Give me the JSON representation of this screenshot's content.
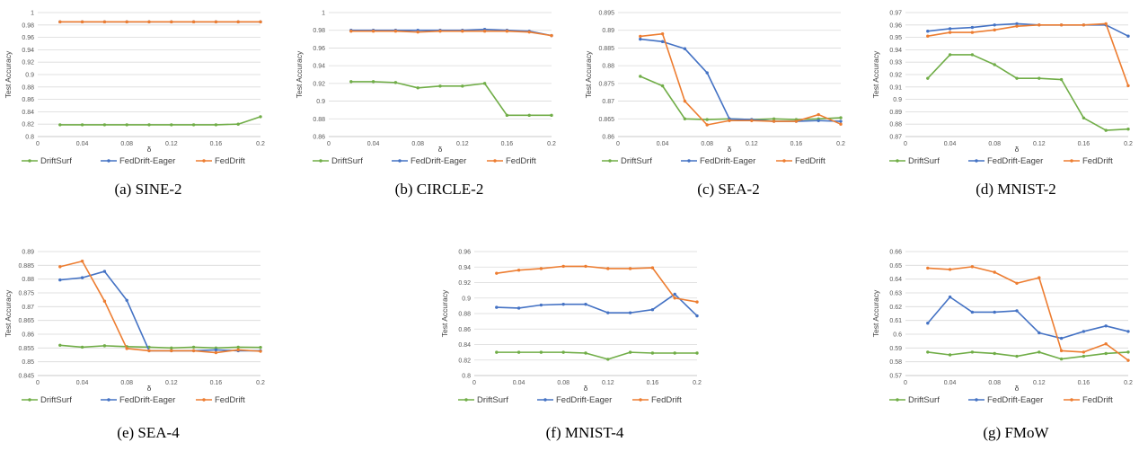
{
  "series_colors": {
    "DriftSurf": "#70AD47",
    "FedDrift-Eager": "#4472C4",
    "FedDrift": "#ED7D31"
  },
  "chart_data": [
    {
      "type": "line",
      "caption": "(a) SINE-2",
      "xlabel": "δ",
      "ylabel": "Test Accuracy",
      "x": [
        0.02,
        0.04,
        0.06,
        0.08,
        0.1,
        0.12,
        0.14,
        0.16,
        0.18,
        0.2
      ],
      "xticks": [
        "0",
        "0.04",
        "0.08",
        "0.12",
        "0.16",
        "0.2"
      ],
      "xtick_values": [
        0,
        0.04,
        0.08,
        0.12,
        0.16,
        0.2
      ],
      "xlim": [
        0,
        0.2
      ],
      "ylim": [
        0.8,
        1.0
      ],
      "yticks": [
        "0.8",
        "0.82",
        "0.84",
        "0.86",
        "0.88",
        "0.9",
        "0.92",
        "0.94",
        "0.96",
        "0.98",
        "1"
      ],
      "series": [
        {
          "name": "DriftSurf",
          "values": [
            0.819,
            0.819,
            0.819,
            0.819,
            0.819,
            0.819,
            0.819,
            0.819,
            0.82,
            0.832
          ]
        },
        {
          "name": "FedDrift-Eager",
          "values": [
            0.985,
            0.985,
            0.985,
            0.985,
            0.985,
            0.985,
            0.985,
            0.985,
            0.985,
            0.985
          ]
        },
        {
          "name": "FedDrift",
          "values": [
            0.985,
            0.985,
            0.985,
            0.985,
            0.985,
            0.985,
            0.985,
            0.985,
            0.985,
            0.985
          ]
        }
      ]
    },
    {
      "type": "line",
      "caption": "(b) CIRCLE-2",
      "xlabel": "δ",
      "ylabel": "Test Accuracy",
      "x": [
        0.02,
        0.04,
        0.06,
        0.08,
        0.1,
        0.12,
        0.14,
        0.16,
        0.18,
        0.2
      ],
      "xticks": [
        "0",
        "0.04",
        "0.08",
        "0.12",
        "0.16",
        "0.2"
      ],
      "xtick_values": [
        0,
        0.04,
        0.08,
        0.12,
        0.16,
        0.2
      ],
      "xlim": [
        0,
        0.2
      ],
      "ylim": [
        0.86,
        1.0
      ],
      "yticks": [
        "0.86",
        "0.88",
        "0.9",
        "0.92",
        "0.94",
        "0.96",
        "0.98",
        "1"
      ],
      "series": [
        {
          "name": "DriftSurf",
          "values": [
            0.922,
            0.922,
            0.921,
            0.915,
            0.917,
            0.917,
            0.92,
            0.884,
            0.884,
            0.884
          ]
        },
        {
          "name": "FedDrift-Eager",
          "values": [
            0.98,
            0.98,
            0.98,
            0.98,
            0.98,
            0.98,
            0.981,
            0.98,
            0.979,
            0.974
          ]
        },
        {
          "name": "FedDrift",
          "values": [
            0.979,
            0.979,
            0.979,
            0.978,
            0.979,
            0.979,
            0.979,
            0.979,
            0.978,
            0.974
          ]
        }
      ]
    },
    {
      "type": "line",
      "caption": "(c) SEA-2",
      "xlabel": "δ",
      "ylabel": "Test Accuracy",
      "x": [
        0.02,
        0.04,
        0.06,
        0.08,
        0.1,
        0.12,
        0.14,
        0.16,
        0.18,
        0.2
      ],
      "xticks": [
        "0",
        "0.04",
        "0.08",
        "0.12",
        "0.16",
        "0.2"
      ],
      "xtick_values": [
        0,
        0.04,
        0.08,
        0.12,
        0.16,
        0.2
      ],
      "xlim": [
        0,
        0.2
      ],
      "ylim": [
        0.86,
        0.895
      ],
      "yticks": [
        "0.86",
        "0.865",
        "0.87",
        "0.875",
        "0.88",
        "0.885",
        "0.89",
        "0.895"
      ],
      "series": [
        {
          "name": "DriftSurf",
          "values": [
            0.877,
            0.8743,
            0.865,
            0.8648,
            0.865,
            0.8648,
            0.865,
            0.8648,
            0.865,
            0.8653
          ]
        },
        {
          "name": "FedDrift-Eager",
          "values": [
            0.8875,
            0.8868,
            0.8848,
            0.878,
            0.865,
            0.8648,
            0.8643,
            0.8643,
            0.8645,
            0.8643
          ]
        },
        {
          "name": "FedDrift",
          "values": [
            0.8883,
            0.889,
            0.87,
            0.8633,
            0.8645,
            0.8645,
            0.8643,
            0.8643,
            0.8662,
            0.8635
          ]
        }
      ]
    },
    {
      "type": "line",
      "caption": "(d) MNIST-2",
      "xlabel": "δ",
      "ylabel": "Test Accuracy",
      "x": [
        0.02,
        0.04,
        0.06,
        0.08,
        0.1,
        0.12,
        0.14,
        0.16,
        0.18,
        0.2
      ],
      "xticks": [
        "0",
        "0.04",
        "0.08",
        "0.12",
        "0.16",
        "0.2"
      ],
      "xtick_values": [
        0,
        0.04,
        0.08,
        0.12,
        0.16,
        0.2
      ],
      "xlim": [
        0,
        0.2
      ],
      "ylim": [
        0.87,
        0.97
      ],
      "yticks": [
        "0.87",
        "0.88",
        "0.89",
        "0.9",
        "0.91",
        "0.92",
        "0.93",
        "0.94",
        "0.95",
        "0.96",
        "0.97"
      ],
      "series": [
        {
          "name": "DriftSurf",
          "values": [
            0.917,
            0.936,
            0.936,
            0.928,
            0.917,
            0.917,
            0.916,
            0.885,
            0.875,
            0.876
          ]
        },
        {
          "name": "FedDrift-Eager",
          "values": [
            0.955,
            0.957,
            0.958,
            0.96,
            0.961,
            0.96,
            0.96,
            0.96,
            0.96,
            0.951
          ]
        },
        {
          "name": "FedDrift",
          "values": [
            0.951,
            0.954,
            0.954,
            0.956,
            0.959,
            0.96,
            0.96,
            0.96,
            0.961,
            0.911
          ]
        }
      ]
    },
    {
      "type": "line",
      "caption": "(e) SEA-4",
      "xlabel": "δ",
      "ylabel": "Test Accuracy",
      "x": [
        0.02,
        0.04,
        0.06,
        0.08,
        0.1,
        0.12,
        0.14,
        0.16,
        0.18,
        0.2
      ],
      "xticks": [
        "0",
        "0.04",
        "0.08",
        "0.12",
        "0.16",
        "0.2"
      ],
      "xtick_values": [
        0,
        0.04,
        0.08,
        0.12,
        0.16,
        0.2
      ],
      "xlim": [
        0,
        0.2
      ],
      "ylim": [
        0.845,
        0.89
      ],
      "yticks": [
        "0.845",
        "0.85",
        "0.855",
        "0.86",
        "0.865",
        "0.87",
        "0.875",
        "0.88",
        "0.885",
        "0.89"
      ],
      "series": [
        {
          "name": "DriftSurf",
          "values": [
            0.856,
            0.8553,
            0.8558,
            0.8555,
            0.8553,
            0.855,
            0.8553,
            0.855,
            0.8553,
            0.8552
          ]
        },
        {
          "name": "FedDrift-Eager",
          "values": [
            0.8797,
            0.8805,
            0.8828,
            0.8723,
            0.854,
            0.854,
            0.854,
            0.8543,
            0.854,
            0.854
          ]
        },
        {
          "name": "FedDrift",
          "values": [
            0.8845,
            0.8865,
            0.872,
            0.8548,
            0.854,
            0.854,
            0.854,
            0.8533,
            0.8543,
            0.8538
          ]
        }
      ]
    },
    {
      "type": "line",
      "caption": "(f) MNIST-4",
      "xlabel": "δ",
      "ylabel": "Test Accuracy",
      "x": [
        0.02,
        0.04,
        0.06,
        0.08,
        0.1,
        0.12,
        0.14,
        0.16,
        0.18,
        0.2
      ],
      "xticks": [
        "0",
        "0.04",
        "0.08",
        "0.12",
        "0.16",
        "0.2"
      ],
      "xtick_values": [
        0,
        0.04,
        0.08,
        0.12,
        0.16,
        0.2
      ],
      "xlim": [
        0,
        0.2
      ],
      "ylim": [
        0.8,
        0.96
      ],
      "yticks": [
        "0.8",
        "0.82",
        "0.84",
        "0.86",
        "0.88",
        "0.9",
        "0.92",
        "0.94",
        "0.96"
      ],
      "series": [
        {
          "name": "DriftSurf",
          "values": [
            0.83,
            0.83,
            0.83,
            0.83,
            0.829,
            0.821,
            0.83,
            0.829,
            0.829,
            0.829
          ]
        },
        {
          "name": "FedDrift-Eager",
          "values": [
            0.888,
            0.887,
            0.891,
            0.892,
            0.892,
            0.881,
            0.881,
            0.885,
            0.905,
            0.877
          ]
        },
        {
          "name": "FedDrift",
          "values": [
            0.932,
            0.936,
            0.938,
            0.941,
            0.941,
            0.938,
            0.938,
            0.939,
            0.9,
            0.895
          ]
        }
      ]
    },
    {
      "type": "line",
      "caption": "(g) FMoW",
      "xlabel": "δ",
      "ylabel": "Test Accuracy",
      "x": [
        0.02,
        0.04,
        0.06,
        0.08,
        0.1,
        0.12,
        0.14,
        0.16,
        0.18,
        0.2
      ],
      "xticks": [
        "0",
        "0.04",
        "0.08",
        "0.12",
        "0.16",
        "0.2"
      ],
      "xtick_values": [
        0,
        0.04,
        0.08,
        0.12,
        0.16,
        0.2
      ],
      "xlim": [
        0,
        0.2
      ],
      "ylim": [
        0.57,
        0.66
      ],
      "yticks": [
        "0.57",
        "0.58",
        "0.59",
        "0.6",
        "0.61",
        "0.62",
        "0.63",
        "0.64",
        "0.65",
        "0.66"
      ],
      "series": [
        {
          "name": "DriftSurf",
          "values": [
            0.587,
            0.585,
            0.587,
            0.586,
            0.584,
            0.587,
            0.582,
            0.584,
            0.586,
            0.587
          ]
        },
        {
          "name": "FedDrift-Eager",
          "values": [
            0.608,
            0.627,
            0.616,
            0.616,
            0.617,
            0.601,
            0.597,
            0.602,
            0.606,
            0.602
          ]
        },
        {
          "name": "FedDrift",
          "values": [
            0.648,
            0.647,
            0.649,
            0.645,
            0.637,
            0.641,
            0.588,
            0.587,
            0.593,
            0.581
          ]
        }
      ]
    }
  ]
}
